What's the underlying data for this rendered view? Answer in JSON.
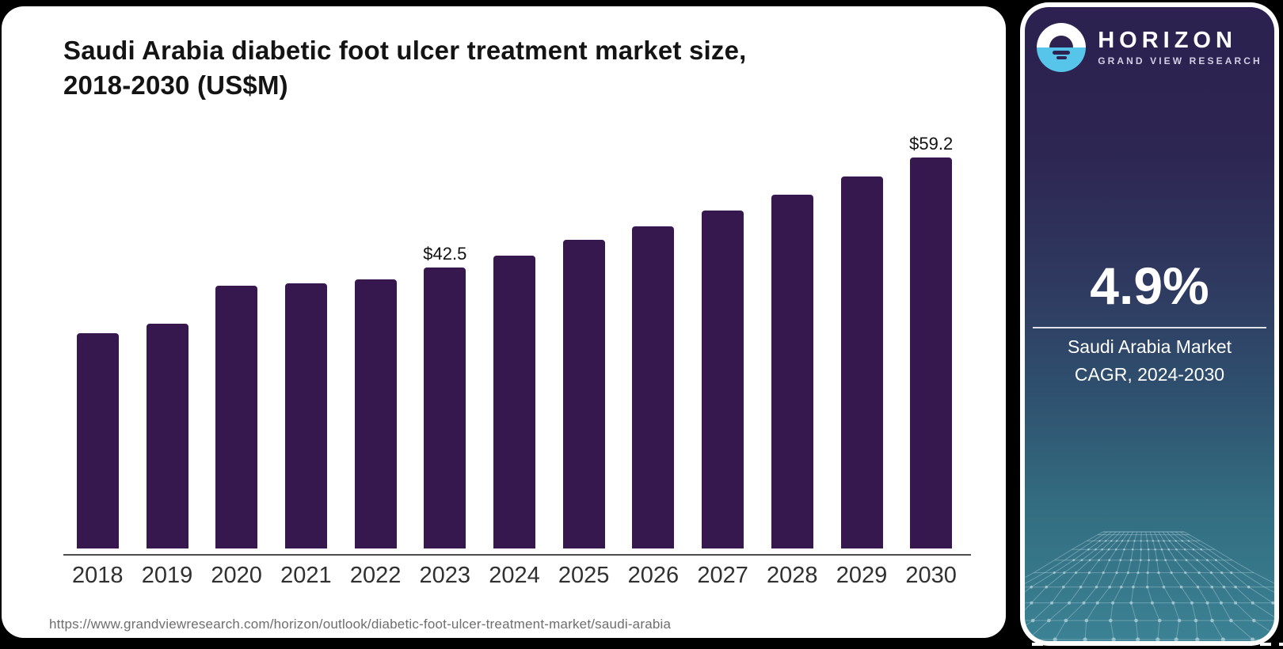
{
  "header": {
    "title_line1": "Saudi Arabia diabetic foot ulcer treatment market size,",
    "title_line2": "2018-2030 (US$M)"
  },
  "chart_data": {
    "type": "bar",
    "title": "Saudi Arabia diabetic foot ulcer treatment market size, 2018-2030 (US$M)",
    "unit": "US$M",
    "categories": [
      "2018",
      "2019",
      "2020",
      "2021",
      "2022",
      "2023",
      "2024",
      "2025",
      "2026",
      "2027",
      "2028",
      "2029",
      "2030"
    ],
    "values": [
      32.6,
      34.0,
      39.8,
      40.1,
      40.7,
      42.5,
      44.3,
      46.7,
      48.8,
      51.2,
      53.6,
      56.3,
      59.2
    ],
    "data_labels": [
      {
        "category": "2023",
        "label": "$42.5"
      },
      {
        "category": "2030",
        "label": "$59.2"
      }
    ],
    "ylim": [
      0,
      65
    ],
    "grid": false,
    "legend": "none",
    "bar_color": "#36184f"
  },
  "footer": {
    "source_url": "https://www.grandviewresearch.com/horizon/outlook/diabetic-foot-ulcer-treatment-market/saudi-arabia"
  },
  "side_panel": {
    "brand": {
      "name": "HORIZON",
      "subtitle": "GRAND VIEW RESEARCH"
    },
    "stat": {
      "value": "4.9%",
      "caption_line1": "Saudi Arabia Market",
      "caption_line2": "CAGR, 2024-2030"
    }
  },
  "colors": {
    "bar": "#36184f",
    "panel_top": "#2c2150",
    "panel_bottom": "#3b8294",
    "logo_blue": "#57c4ea",
    "axis": "#4d4d4d"
  }
}
